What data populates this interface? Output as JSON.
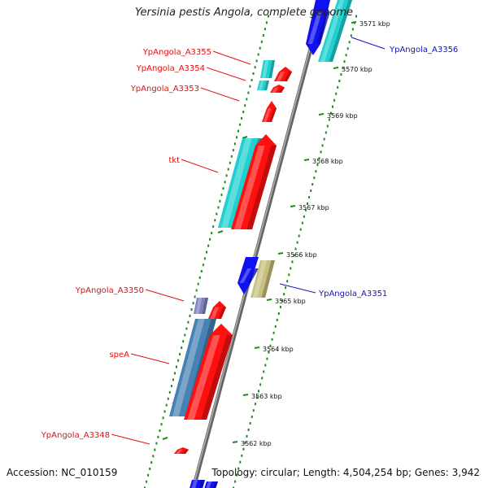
{
  "title": "Yersinia pestis Angola, complete genome",
  "footer": {
    "accession": "Accession: NC_010159",
    "topology": "Topology: circular; Length: 4,504,254 bp; Genes: 3,942"
  },
  "colors": {
    "backbone": "#888888",
    "dots": "#1e8a1e",
    "label_red": "#e01010",
    "label_blue": "#1010c8",
    "red": "#ff1010",
    "cyan": "#20d0d0",
    "blue": "#1010f0",
    "steelblue": "#4682b4",
    "khaki": "#c8c080",
    "slate": "#8080c0"
  },
  "scale_ticks": [
    "3571 kbp",
    "3570 kbp",
    "3569 kbp",
    "3568 kbp",
    "3567 kbp",
    "3566 kbp",
    "3565 kbp",
    "3564 kbp",
    "3563 kbp",
    "3562 kbp"
  ],
  "genes": [
    {
      "label": "YpAngola_A3356",
      "color": "blue",
      "label_color": "blue"
    },
    {
      "label": "YpAngola_A3355",
      "color": "cyan",
      "label_color": "red"
    },
    {
      "label": "YpAngola_A3354",
      "color": "cyan",
      "label_color": "red"
    },
    {
      "label": "YpAngola_A3353",
      "color": "red",
      "label_color": "red"
    },
    {
      "label": "tkt",
      "color": "cyan",
      "label_color": "red"
    },
    {
      "label": "YpAngola_A3351",
      "color": "khaki",
      "label_color": "blue"
    },
    {
      "label": "YpAngola_A3350",
      "color": "slate",
      "label_color": "red"
    },
    {
      "label": "speA",
      "color": "steelblue",
      "label_color": "red"
    },
    {
      "label": "YpAngola_A3348",
      "color": "red",
      "label_color": "red"
    }
  ]
}
